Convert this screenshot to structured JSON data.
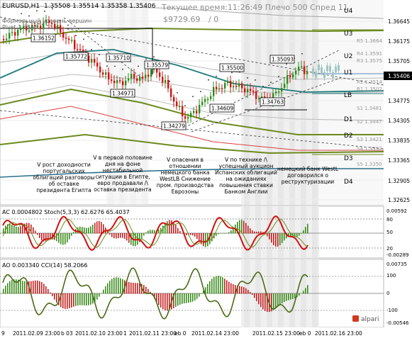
{
  "header": {
    "symbol": "EURUSD,H1",
    "ohlc": "1.35508 1.35514 1.35358 1.35406",
    "clock": "Текущее время:11:26:49 Плечо 500 Спред 11",
    "equity": "$9729.69",
    "equity_suffix": "/ 0",
    "overlay_line1": "Формальный уровень вершин",
    "overlay_line2": "Pivot 1.3566"
  },
  "price_axis": {
    "ticks": [
      "1.36645",
      "1.36175",
      "1.35705",
      "1.35406",
      "1.34775",
      "1.34305",
      "1.33835",
      "1.33365",
      "1.32905",
      "1.32625"
    ],
    "current": "1.35406"
  },
  "pivot_labels": [
    "U4",
    "U3",
    "U2",
    "U1",
    "LB",
    "D1",
    "D2",
    "D3",
    "D4"
  ],
  "minor_levels": [
    "R5 1.3664",
    "R4 1.3591",
    "R3 1.3575",
    "R2 1.3514",
    "R1 1.3502",
    "S1 1.3481",
    "S2 1.3447",
    "S3 1.3421",
    "S4 1.3392",
    "S5 1.3350"
  ],
  "price_callouts": [
    "1.36152",
    "1.35772",
    "1.35710",
    "1.34971",
    "1.35579",
    "1.34279",
    "1.34609",
    "1.35500",
    "1.34763",
    "1.35093"
  ],
  "annotations": [
    "V рост доходности португальских облигаций разговоры об оставке президента Египта",
    "V в первой половине дня на фоне нестабильной ситуации в Египте, евро продавали /\\ оставка президента",
    "V опасения в отношении немецкого банка WestLB Снижение пром. производства Еврозоны",
    "V по технике /\\ успешный аукцион Испанских облигаций на ожиданиях повышения ставки Банком Англии",
    "немецкий банк WestL договорился о реструктуризации"
  ],
  "ac_stoch": {
    "label": "AC 0.0004802  Stoch(5,3,3) 62.6276 65.4037",
    "ticks": [
      "0.00592",
      "80",
      "50",
      "20",
      "-0.00289"
    ]
  },
  "ao_cci": {
    "label": "AO 0.003340  CCI(14) 58.2066",
    "ticks": [
      "0.00735",
      "100",
      "0",
      "-100",
      "-0.00546"
    ]
  },
  "time_axis": [
    "9",
    "2011.02.09 23:00",
    "b 03",
    "2011.02.10 23:00",
    "1",
    "2011.02.11 23:00",
    "eb 0",
    "2011.02.14 23:00",
    "",
    "2011.02.15 23:00",
    "eb 0",
    "2011.02.16 23:00"
  ],
  "brand": "alpari",
  "colors": {
    "bull": "#2d8b1c",
    "bear": "#d21010",
    "olive": "#6b8a1e",
    "teal": "#1f7a7a",
    "stoch": "#d01010",
    "ao_up": "#3a8a1a",
    "ao_down": "#c02020"
  }
}
